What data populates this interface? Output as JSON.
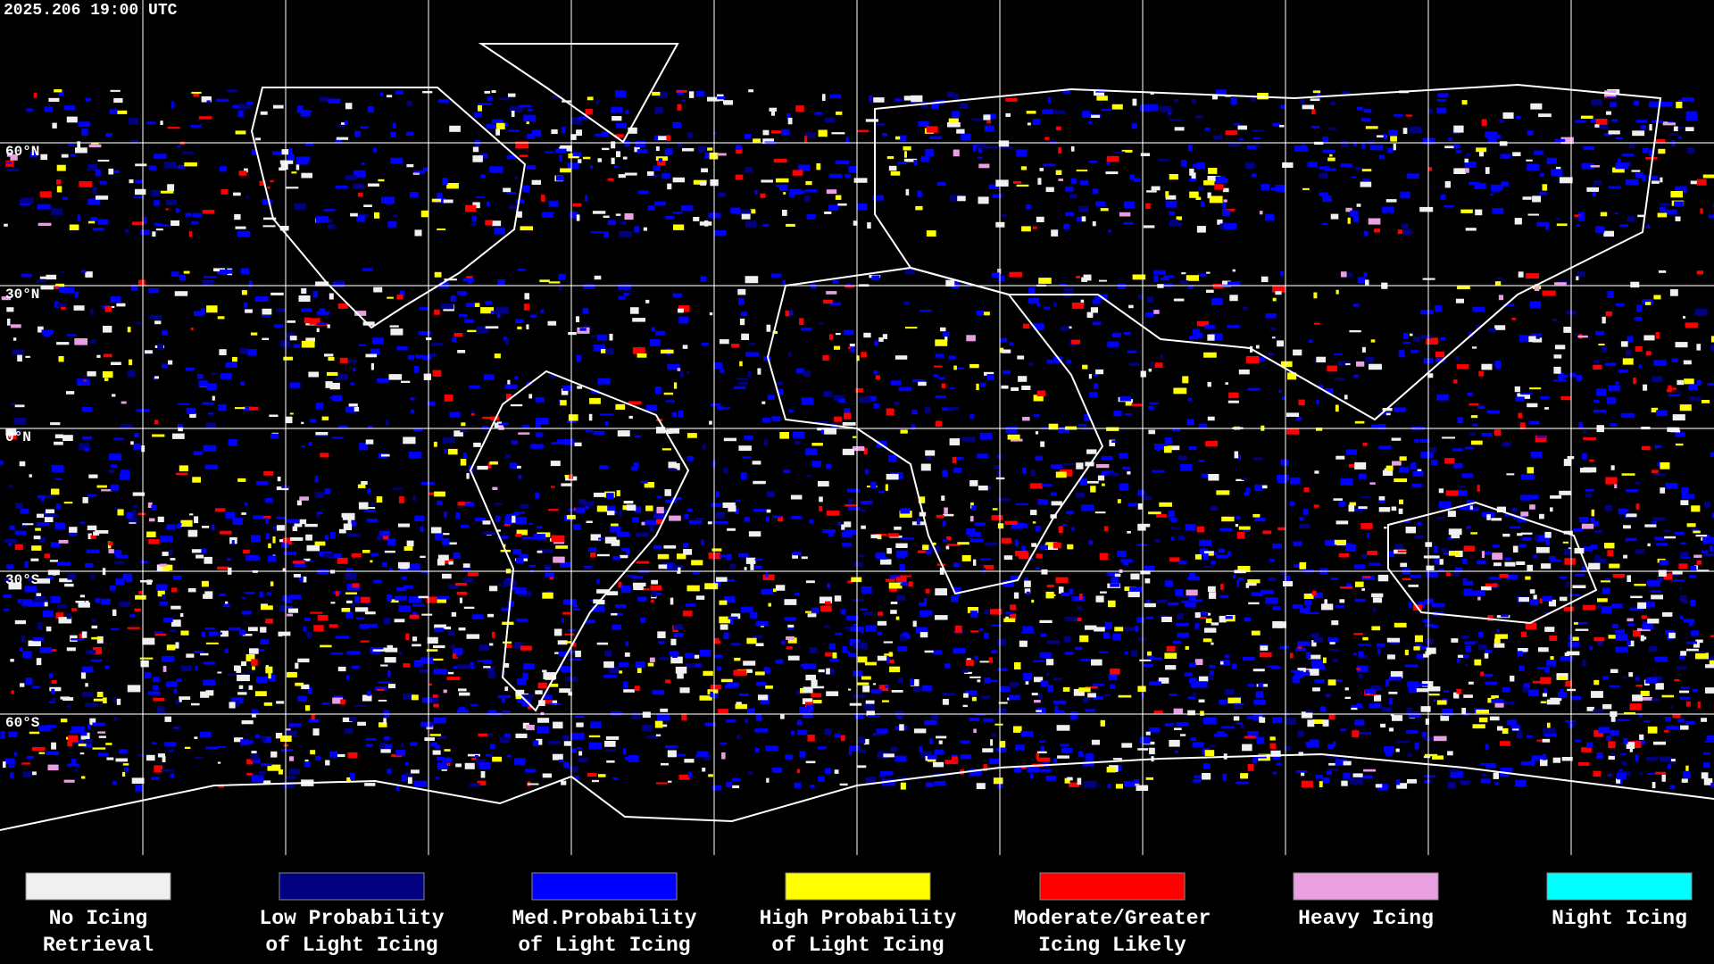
{
  "header": {
    "title": "2025.206 19:00 UTC"
  },
  "latitude_labels": [
    "60°N",
    "30°N",
    "0°N",
    "30°S",
    "60°S"
  ],
  "legend": [
    {
      "lines": [
        "No Icing",
        "Retrieval"
      ],
      "color": "#f0f0f0"
    },
    {
      "lines": [
        "Low Probability",
        "of Light Icing"
      ],
      "color": "#000080"
    },
    {
      "lines": [
        "Med.Probability",
        "of Light Icing"
      ],
      "color": "#0000ff"
    },
    {
      "lines": [
        "High Probability",
        "of Light Icing"
      ],
      "color": "#ffff00"
    },
    {
      "lines": [
        "Moderate/Greater",
        "Icing Likely"
      ],
      "color": "#ff0000"
    },
    {
      "lines": [
        "Heavy Icing"
      ],
      "color": "#e8a0e0"
    },
    {
      "lines": [
        "Night Icing"
      ],
      "color": "#00ffff"
    }
  ]
}
